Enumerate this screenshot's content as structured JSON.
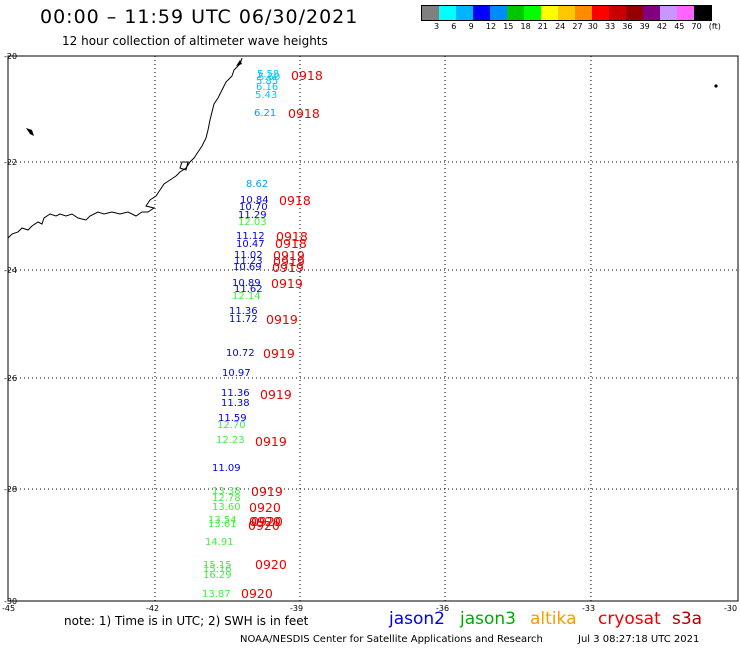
{
  "header": {
    "title": "00:00 – 11:59 UTC 06/30/2021",
    "subtitle": "12 hour collection of altimeter wave heights"
  },
  "legend": {
    "colors": [
      "#808080",
      "#00ffff",
      "#00b4ff",
      "#0000ff",
      "#008cff",
      "#00c800",
      "#00ff00",
      "#ffff00",
      "#ffc800",
      "#ff8c00",
      "#ff0000",
      "#c80000",
      "#960000",
      "#800080",
      "#c896ff",
      "#ff64ff",
      "#000000"
    ],
    "labels": [
      "3",
      "6",
      "9",
      "12",
      "15",
      "18",
      "21",
      "24",
      "27",
      "30",
      "33",
      "36",
      "39",
      "42",
      "45",
      "70",
      "(ft)"
    ]
  },
  "axes": {
    "lat_labels": [
      "-20",
      "-22",
      "-24",
      "-26",
      "-28",
      "-30"
    ],
    "lon_labels": [
      "-45",
      "-42",
      "-39",
      "-36",
      "-33",
      "-30"
    ]
  },
  "observations": [
    {
      "value": "5.58",
      "color": "#00c8ff"
    },
    {
      "value": "5.60",
      "color": "#00c8ff"
    },
    {
      "value": "5.85",
      "color": "#00c8ff"
    },
    {
      "value": "6.16",
      "color": "#00c8ff"
    },
    {
      "value": "5.43",
      "color": "#00c8ff"
    },
    {
      "value": "6.21",
      "color": "#00a0ff"
    },
    {
      "value": "8.62",
      "color": "#00a0ff"
    },
    {
      "value": "10.84",
      "color": "#0000ee"
    },
    {
      "value": "10.70",
      "color": "#0000ee"
    },
    {
      "value": "11.29",
      "color": "#0000ee"
    },
    {
      "value": "12.03",
      "color": "#44ee44"
    },
    {
      "value": "11.12",
      "color": "#0000ee"
    },
    {
      "value": "10.47",
      "color": "#0000ee"
    },
    {
      "value": "11.02",
      "color": "#0000ee"
    },
    {
      "value": "11.23",
      "color": "#0000ee"
    },
    {
      "value": "10.69",
      "color": "#0000ee"
    },
    {
      "value": "10.89",
      "color": "#0000ee"
    },
    {
      "value": "11.62",
      "color": "#0000ee"
    },
    {
      "value": "12.14",
      "color": "#44ee44"
    },
    {
      "value": "11.36",
      "color": "#0000ee"
    },
    {
      "value": "11.72",
      "color": "#0000ee"
    },
    {
      "value": "10.72",
      "color": "#0000ee"
    },
    {
      "value": "10.97",
      "color": "#0000ee"
    },
    {
      "value": "11.36",
      "color": "#0000ee"
    },
    {
      "value": "11.38",
      "color": "#0000ee"
    },
    {
      "value": "11.59",
      "color": "#0000ee"
    },
    {
      "value": "12.70",
      "color": "#44ee44"
    },
    {
      "value": "12.23",
      "color": "#44ee44"
    },
    {
      "value": "11.09",
      "color": "#0000ee"
    },
    {
      "value": "13.38",
      "color": "#44ee44"
    },
    {
      "value": "12.78",
      "color": "#44ee44"
    },
    {
      "value": "13.60",
      "color": "#44ee44"
    },
    {
      "value": "13.54",
      "color": "#44ee44"
    },
    {
      "value": "13.61",
      "color": "#44ee44"
    },
    {
      "value": "14.91",
      "color": "#44ee44"
    },
    {
      "value": "15.15",
      "color": "#44ee44"
    },
    {
      "value": "15.16",
      "color": "#44ee44"
    },
    {
      "value": "16.29",
      "color": "#44ee44"
    },
    {
      "value": "13.87",
      "color": "#44ee44"
    }
  ],
  "time_labels": [
    "0918",
    "0918",
    "0918",
    "0918",
    "0918",
    "0919",
    "0919",
    "0919",
    "0919",
    "0919",
    "0919",
    "0919",
    "0919",
    "0919",
    "0920",
    "0920",
    "0920",
    "0920",
    "0920",
    "0920"
  ],
  "footer": {
    "note": "note: 1) Time is in UTC; 2) SWH is in feet",
    "satellites": [
      {
        "name": "jason2",
        "color": "#0000ee"
      },
      {
        "name": "jason3",
        "color": "#00aa00"
      },
      {
        "name": "altika",
        "color": "#ff9900"
      },
      {
        "name": "cryosat",
        "color": "#ee0000"
      },
      {
        "name": "s3a",
        "color": "#aa0000"
      }
    ],
    "credit": "NOAA/NESDIS Center for Satellite Applications and Research",
    "timestamp": "Jul  3 08:27:18 UTC 2021"
  }
}
